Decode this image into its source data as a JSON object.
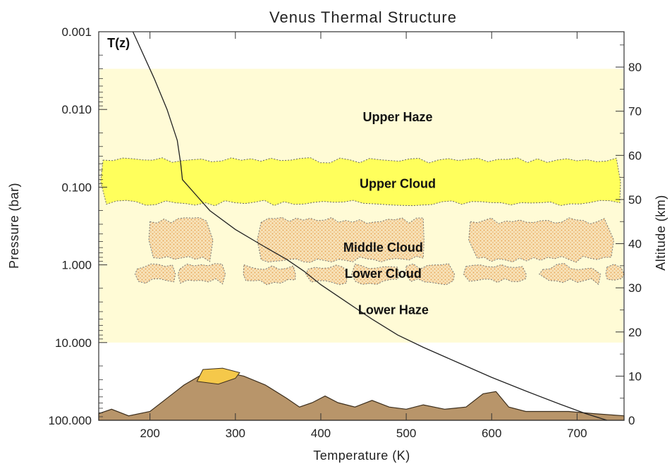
{
  "chart_data": {
    "type": "line",
    "title": "Venus Thermal Structure",
    "xlabel": "Temperature (K)",
    "ylabel": "Pressure (bar)",
    "y2label": "Altitude (km)",
    "xlim": [
      140,
      755
    ],
    "ylim_pressure": [
      100.0,
      0.001
    ],
    "y_scale": "log",
    "y2lim_altitude": [
      0,
      88
    ],
    "x_ticks": [
      200,
      300,
      400,
      500,
      600,
      700
    ],
    "y_ticks": [
      {
        "value": 0.001,
        "label": "0.001"
      },
      {
        "value": 0.01,
        "label": "0.010"
      },
      {
        "value": 0.1,
        "label": "0.100"
      },
      {
        "value": 1,
        "label": "1.000"
      },
      {
        "value": 10,
        "label": "10.000"
      },
      {
        "value": 100,
        "label": "100.000"
      }
    ],
    "y2_ticks": [
      {
        "value": 0,
        "label": "0"
      },
      {
        "value": 10,
        "label": "10"
      },
      {
        "value": 20,
        "label": "20"
      },
      {
        "value": 30,
        "label": "30"
      },
      {
        "value": 40,
        "label": "40"
      },
      {
        "value": 50,
        "label": "50"
      },
      {
        "value": 60,
        "label": "60"
      },
      {
        "value": 70,
        "label": "70"
      },
      {
        "value": 80,
        "label": "80"
      }
    ],
    "series": [
      {
        "name": "T(z)",
        "color": "#222222",
        "points": [
          {
            "x": 180,
            "p": 0.001
          },
          {
            "x": 205,
            "p": 0.004
          },
          {
            "x": 220,
            "p": 0.01
          },
          {
            "x": 232,
            "p": 0.025
          },
          {
            "x": 236,
            "p": 0.05
          },
          {
            "x": 238,
            "p": 0.08
          },
          {
            "x": 255,
            "p": 0.13
          },
          {
            "x": 270,
            "p": 0.2
          },
          {
            "x": 300,
            "p": 0.35
          },
          {
            "x": 330,
            "p": 0.55
          },
          {
            "x": 360,
            "p": 0.85
          },
          {
            "x": 380,
            "p": 1.2
          },
          {
            "x": 400,
            "p": 1.8
          },
          {
            "x": 430,
            "p": 3.0
          },
          {
            "x": 460,
            "p": 5.0
          },
          {
            "x": 490,
            "p": 8.0
          },
          {
            "x": 520,
            "p": 11.5
          },
          {
            "x": 560,
            "p": 18.0
          },
          {
            "x": 600,
            "p": 28.0
          },
          {
            "x": 640,
            "p": 42.0
          },
          {
            "x": 680,
            "p": 62.0
          },
          {
            "x": 710,
            "p": 82.0
          },
          {
            "x": 735,
            "p": 100.0
          }
        ]
      }
    ],
    "regions": [
      {
        "name": "Upper Haze",
        "kind": "haze",
        "p_top": 0.003,
        "p_bottom": 10,
        "color": "#fffbd6"
      },
      {
        "name": "Upper Cloud",
        "kind": "cloud",
        "p_top": 0.045,
        "p_bottom": 0.16,
        "x_min": 145,
        "x_max": 750,
        "color": "#ffff5c"
      },
      {
        "name": "Middle Cloud",
        "kind": "cloud-patches",
        "p_top": 0.27,
        "p_bottom": 0.85,
        "color": "#f4d29a",
        "patches": [
          [
            200,
            270
          ],
          [
            330,
            520
          ],
          [
            575,
            740
          ]
        ]
      },
      {
        "name": "Lower  Cloud",
        "kind": "cloud-patches",
        "p_top": 1.05,
        "p_bottom": 1.65,
        "color": "#f4d29a",
        "patches": [
          [
            185,
            228
          ],
          [
            235,
            285
          ],
          [
            310,
            370
          ],
          [
            385,
            430
          ],
          [
            440,
            490
          ],
          [
            500,
            555
          ],
          [
            570,
            640
          ],
          [
            660,
            725
          ],
          [
            735,
            752
          ]
        ]
      },
      {
        "name": "Lower Haze",
        "kind": "label-only"
      }
    ],
    "annotations": [
      {
        "text": "T(z)",
        "x": 150,
        "p": 0.0014
      },
      {
        "text": "Upper Haze",
        "x": 490,
        "p": 0.0125
      },
      {
        "text": "Upper Cloud",
        "x": 490,
        "p": 0.09
      },
      {
        "text": "Middle Cloud",
        "x": 473,
        "p": 0.6
      },
      {
        "text": "Lower  Cloud",
        "x": 473,
        "p": 1.3
      },
      {
        "text": "Lower Haze",
        "x": 485,
        "p": 3.8
      }
    ],
    "terrain": {
      "fill": "#b8956a",
      "stroke": "#3c2e1c",
      "highland_color": "#f5c84a",
      "profile": [
        {
          "x": 140,
          "alt": 1.5
        },
        {
          "x": 155,
          "alt": 2.5
        },
        {
          "x": 175,
          "alt": 1.0
        },
        {
          "x": 200,
          "alt": 2.0
        },
        {
          "x": 220,
          "alt": 5.0
        },
        {
          "x": 240,
          "alt": 8.0
        },
        {
          "x": 262,
          "alt": 10.5
        },
        {
          "x": 285,
          "alt": 11.0
        },
        {
          "x": 310,
          "alt": 10.0
        },
        {
          "x": 335,
          "alt": 8.0
        },
        {
          "x": 360,
          "alt": 5.0
        },
        {
          "x": 375,
          "alt": 3.0
        },
        {
          "x": 390,
          "alt": 4.0
        },
        {
          "x": 405,
          "alt": 5.5
        },
        {
          "x": 420,
          "alt": 4.0
        },
        {
          "x": 440,
          "alt": 3.0
        },
        {
          "x": 460,
          "alt": 4.5
        },
        {
          "x": 480,
          "alt": 3.0
        },
        {
          "x": 500,
          "alt": 2.5
        },
        {
          "x": 520,
          "alt": 3.5
        },
        {
          "x": 545,
          "alt": 2.5
        },
        {
          "x": 570,
          "alt": 3.0
        },
        {
          "x": 590,
          "alt": 6.0
        },
        {
          "x": 605,
          "alt": 6.5
        },
        {
          "x": 620,
          "alt": 3.0
        },
        {
          "x": 640,
          "alt": 2.0
        },
        {
          "x": 690,
          "alt": 2.0
        },
        {
          "x": 720,
          "alt": 1.5
        },
        {
          "x": 755,
          "alt": 1.0
        }
      ],
      "highland": [
        {
          "x": 255,
          "alt": 8.8
        },
        {
          "x": 262,
          "alt": 11.5
        },
        {
          "x": 285,
          "alt": 11.8
        },
        {
          "x": 305,
          "alt": 10.8
        },
        {
          "x": 300,
          "alt": 9.5
        },
        {
          "x": 280,
          "alt": 8.2
        }
      ]
    }
  }
}
